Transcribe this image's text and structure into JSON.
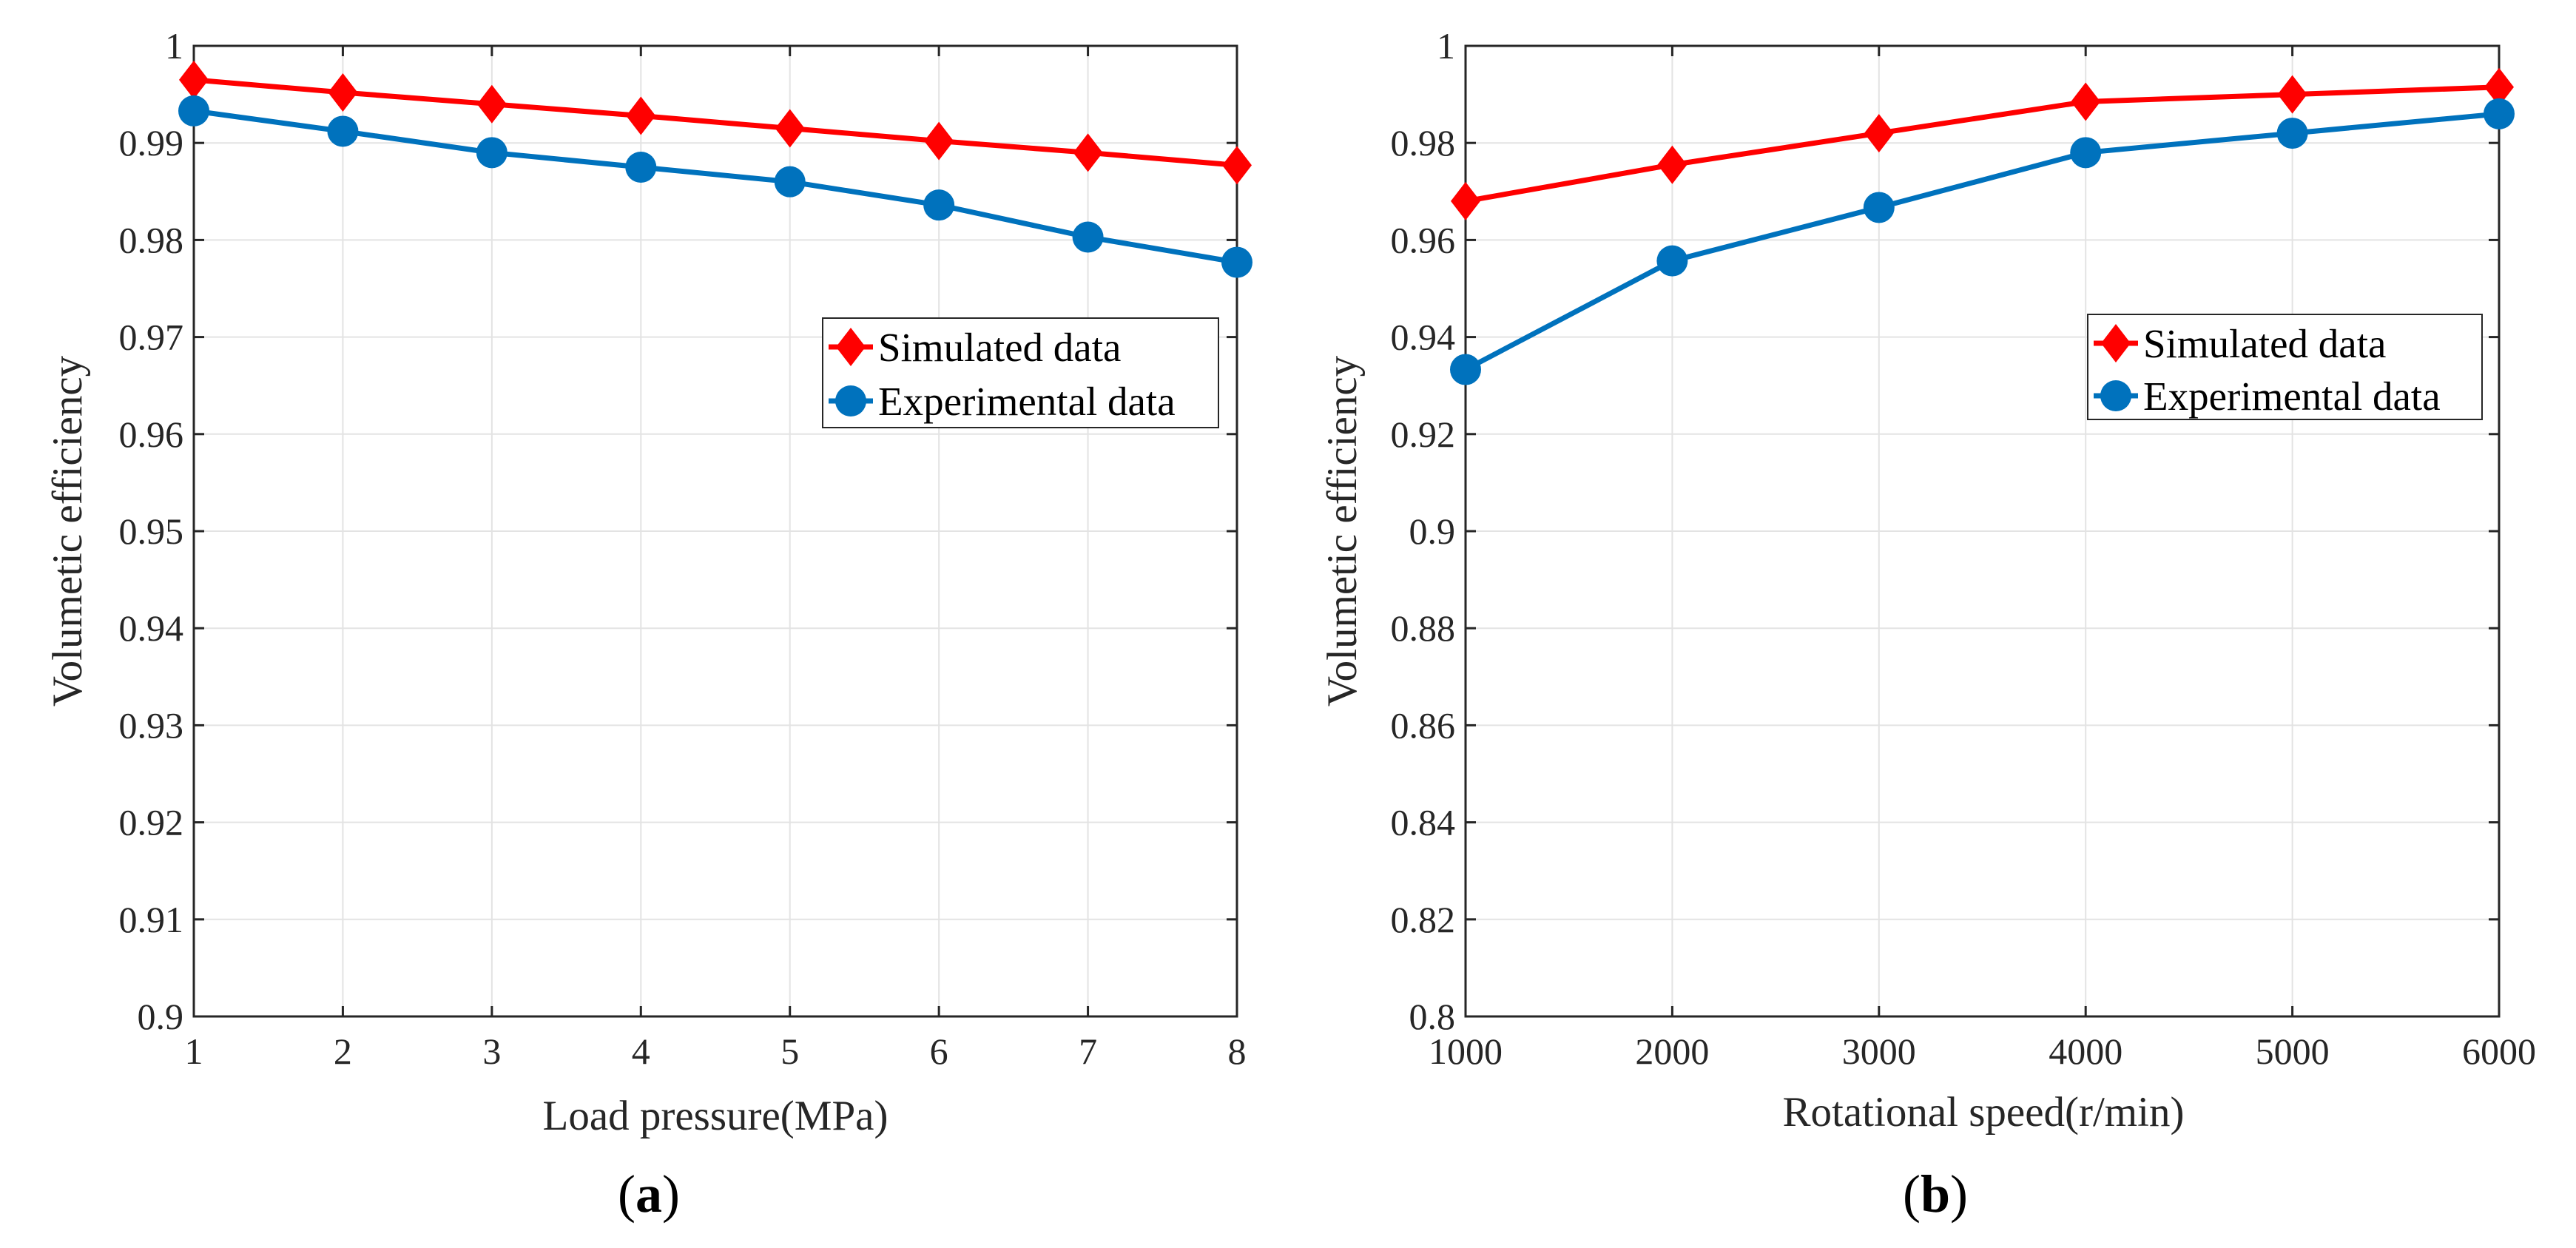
{
  "colors": {
    "simulated": "#ff0000",
    "experimental": "#0072bd"
  },
  "chart_data": [
    {
      "type": "line",
      "panel_label": "a",
      "xlabel": "Load pressure(MPa)",
      "ylabel": "Volumetic efficiency",
      "xlim": [
        1,
        8
      ],
      "ylim": [
        0.9,
        1.0
      ],
      "xticks": [
        1,
        2,
        3,
        4,
        5,
        6,
        7,
        8
      ],
      "yticks": [
        0.9,
        0.91,
        0.92,
        0.93,
        0.94,
        0.95,
        0.96,
        0.97,
        0.98,
        0.99,
        1.0
      ],
      "xtick_labels": [
        "1",
        "2",
        "3",
        "4",
        "5",
        "6",
        "7",
        "8"
      ],
      "ytick_labels": [
        "0.9",
        "0.91",
        "0.92",
        "0.93",
        "0.94",
        "0.95",
        "0.96",
        "0.97",
        "0.98",
        "0.99",
        "1"
      ],
      "grid": true,
      "legend_position": "right",
      "x": [
        1,
        2,
        3,
        4,
        5,
        6,
        7,
        8
      ],
      "series": [
        {
          "name": "Simulated data",
          "marker": "diamond",
          "color": "#ff0000",
          "values": [
            0.9965,
            0.9952,
            0.994,
            0.9928,
            0.9915,
            0.9902,
            0.989,
            0.9877
          ]
        },
        {
          "name": "Experimental data",
          "marker": "circle",
          "color": "#0072bd",
          "values": [
            0.9933,
            0.9912,
            0.989,
            0.9875,
            0.986,
            0.9836,
            0.9803,
            0.9777
          ]
        }
      ]
    },
    {
      "type": "line",
      "panel_label": "b",
      "xlabel": "Rotational speed(r/min)",
      "ylabel": "Volumetic efficiency",
      "xlim": [
        1000,
        6000
      ],
      "ylim": [
        0.8,
        1.0
      ],
      "xticks": [
        1000,
        2000,
        3000,
        4000,
        5000,
        6000
      ],
      "yticks": [
        0.8,
        0.82,
        0.84,
        0.86,
        0.88,
        0.9,
        0.92,
        0.94,
        0.96,
        0.98,
        1.0
      ],
      "xtick_labels": [
        "1000",
        "2000",
        "3000",
        "4000",
        "5000",
        "6000"
      ],
      "ytick_labels": [
        "0.8",
        "0.82",
        "0.84",
        "0.86",
        "0.88",
        "0.9",
        "0.92",
        "0.94",
        "0.96",
        "0.98",
        "1"
      ],
      "grid": true,
      "legend_position": "right",
      "x": [
        1000,
        2000,
        3000,
        4000,
        5000,
        6000
      ],
      "series": [
        {
          "name": "Simulated data",
          "marker": "diamond",
          "color": "#ff0000",
          "values": [
            0.968,
            0.9755,
            0.982,
            0.9885,
            0.99,
            0.9915
          ]
        },
        {
          "name": "Experimental data",
          "marker": "circle",
          "color": "#0072bd",
          "values": [
            0.9333,
            0.9557,
            0.9667,
            0.978,
            0.982,
            0.986
          ]
        }
      ]
    }
  ]
}
